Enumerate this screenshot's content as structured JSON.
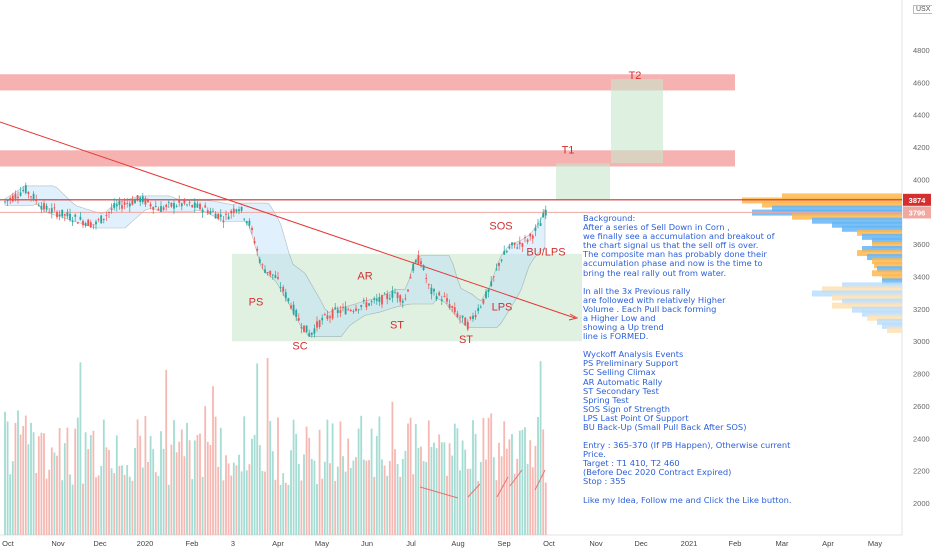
{
  "currency": "USX",
  "chart_data": {
    "type": "candlestick",
    "title": "",
    "ylim": [
      1950,
      4950
    ],
    "y_ticks": [
      2000,
      2200,
      2400,
      2600,
      2800,
      3000,
      3200,
      3400,
      3600,
      3800,
      4000,
      4200,
      4400,
      4600,
      4800
    ],
    "y_tick_labels": [
      "2000",
      "2200",
      "2400",
      "2600",
      "2800",
      "3000",
      "3200",
      "3400",
      "3600",
      "3800",
      "4000",
      "4200",
      "4400",
      "4600",
      "4800"
    ],
    "x_ticks": [
      "Oct",
      "Nov",
      "Dec",
      "2020",
      "Feb",
      "3",
      "Apr",
      "May",
      "Jun",
      "Jul",
      "Aug",
      "Sep",
      "Oct",
      "Nov",
      "Dec",
      "2021",
      "Feb",
      "Mar",
      "Apr",
      "May"
    ],
    "price_labels": [
      {
        "value": 3874,
        "text": "3874",
        "color": "#d32f2f"
      },
      {
        "value": 3796,
        "text": "3796",
        "color": "#f0a8a0"
      }
    ],
    "resistance_zones": [
      {
        "name": "T2 zone",
        "low": 4550,
        "high": 4650
      },
      {
        "name": "T1 zone",
        "low": 4080,
        "high": 4180
      }
    ],
    "target_labels": [
      {
        "text": "T2",
        "value": 4620
      },
      {
        "text": "T1",
        "value": 4160
      }
    ],
    "horizontal_lines": [
      {
        "value": 3874,
        "color": "#d32f2f"
      },
      {
        "value": 3796,
        "color": "#f0a8a0"
      }
    ],
    "annotations": [
      {
        "text": "PS",
        "x": "Mar",
        "y": 3220
      },
      {
        "text": "SC",
        "x": "May",
        "y": 2950
      },
      {
        "text": "AR",
        "x": "Jun",
        "y": 3380
      },
      {
        "text": "ST",
        "x": "Jun",
        "y": 3080
      },
      {
        "text": "ST",
        "x": "Aug",
        "y": 2990
      },
      {
        "text": "LPS",
        "x": "Aug",
        "y": 3190
      },
      {
        "text": "SOS",
        "x": "Sep",
        "y": 3690
      },
      {
        "text": "BU/LPS",
        "x": "Sep",
        "y": 3530
      }
    ],
    "notes": [
      "Background:",
      "After a series of Sell Down in Corn ,",
      "we finally see a accumulation and breakout of",
      "  the chart signal us that the sell off is over.",
      "The composite man has probably done their",
      "accumulation phase and now is the time to",
      "bring the real rally out from water.",
      "",
      "In all the 3x Previous rally",
      "are followed with relatively Higher",
      "Volume . Each Pull back forming",
      "a Higher Low and",
      "showing a Up trend",
      "line is FORMED.",
      "",
      "Wyckoff Analysis Events",
      "PS Preliminary Support",
      "SC Selling Climax",
      "AR Automatic Rally",
      "ST Secondary Test",
      "Spring Test",
      "SOS Sign of Strength",
      "LPS Last Point Of Support",
      "BU Back-Up (Small Pull Back After SOS)",
      "",
      "Entry : 365-370 (If PB Happen), Otherwise current Price.",
      "Target : T1 410, T2 460",
      "(Before Dec 2020 Contract Expired)",
      "Stop : 355",
      "",
      "Like my Idea, Follow me and Click the Like button."
    ]
  }
}
